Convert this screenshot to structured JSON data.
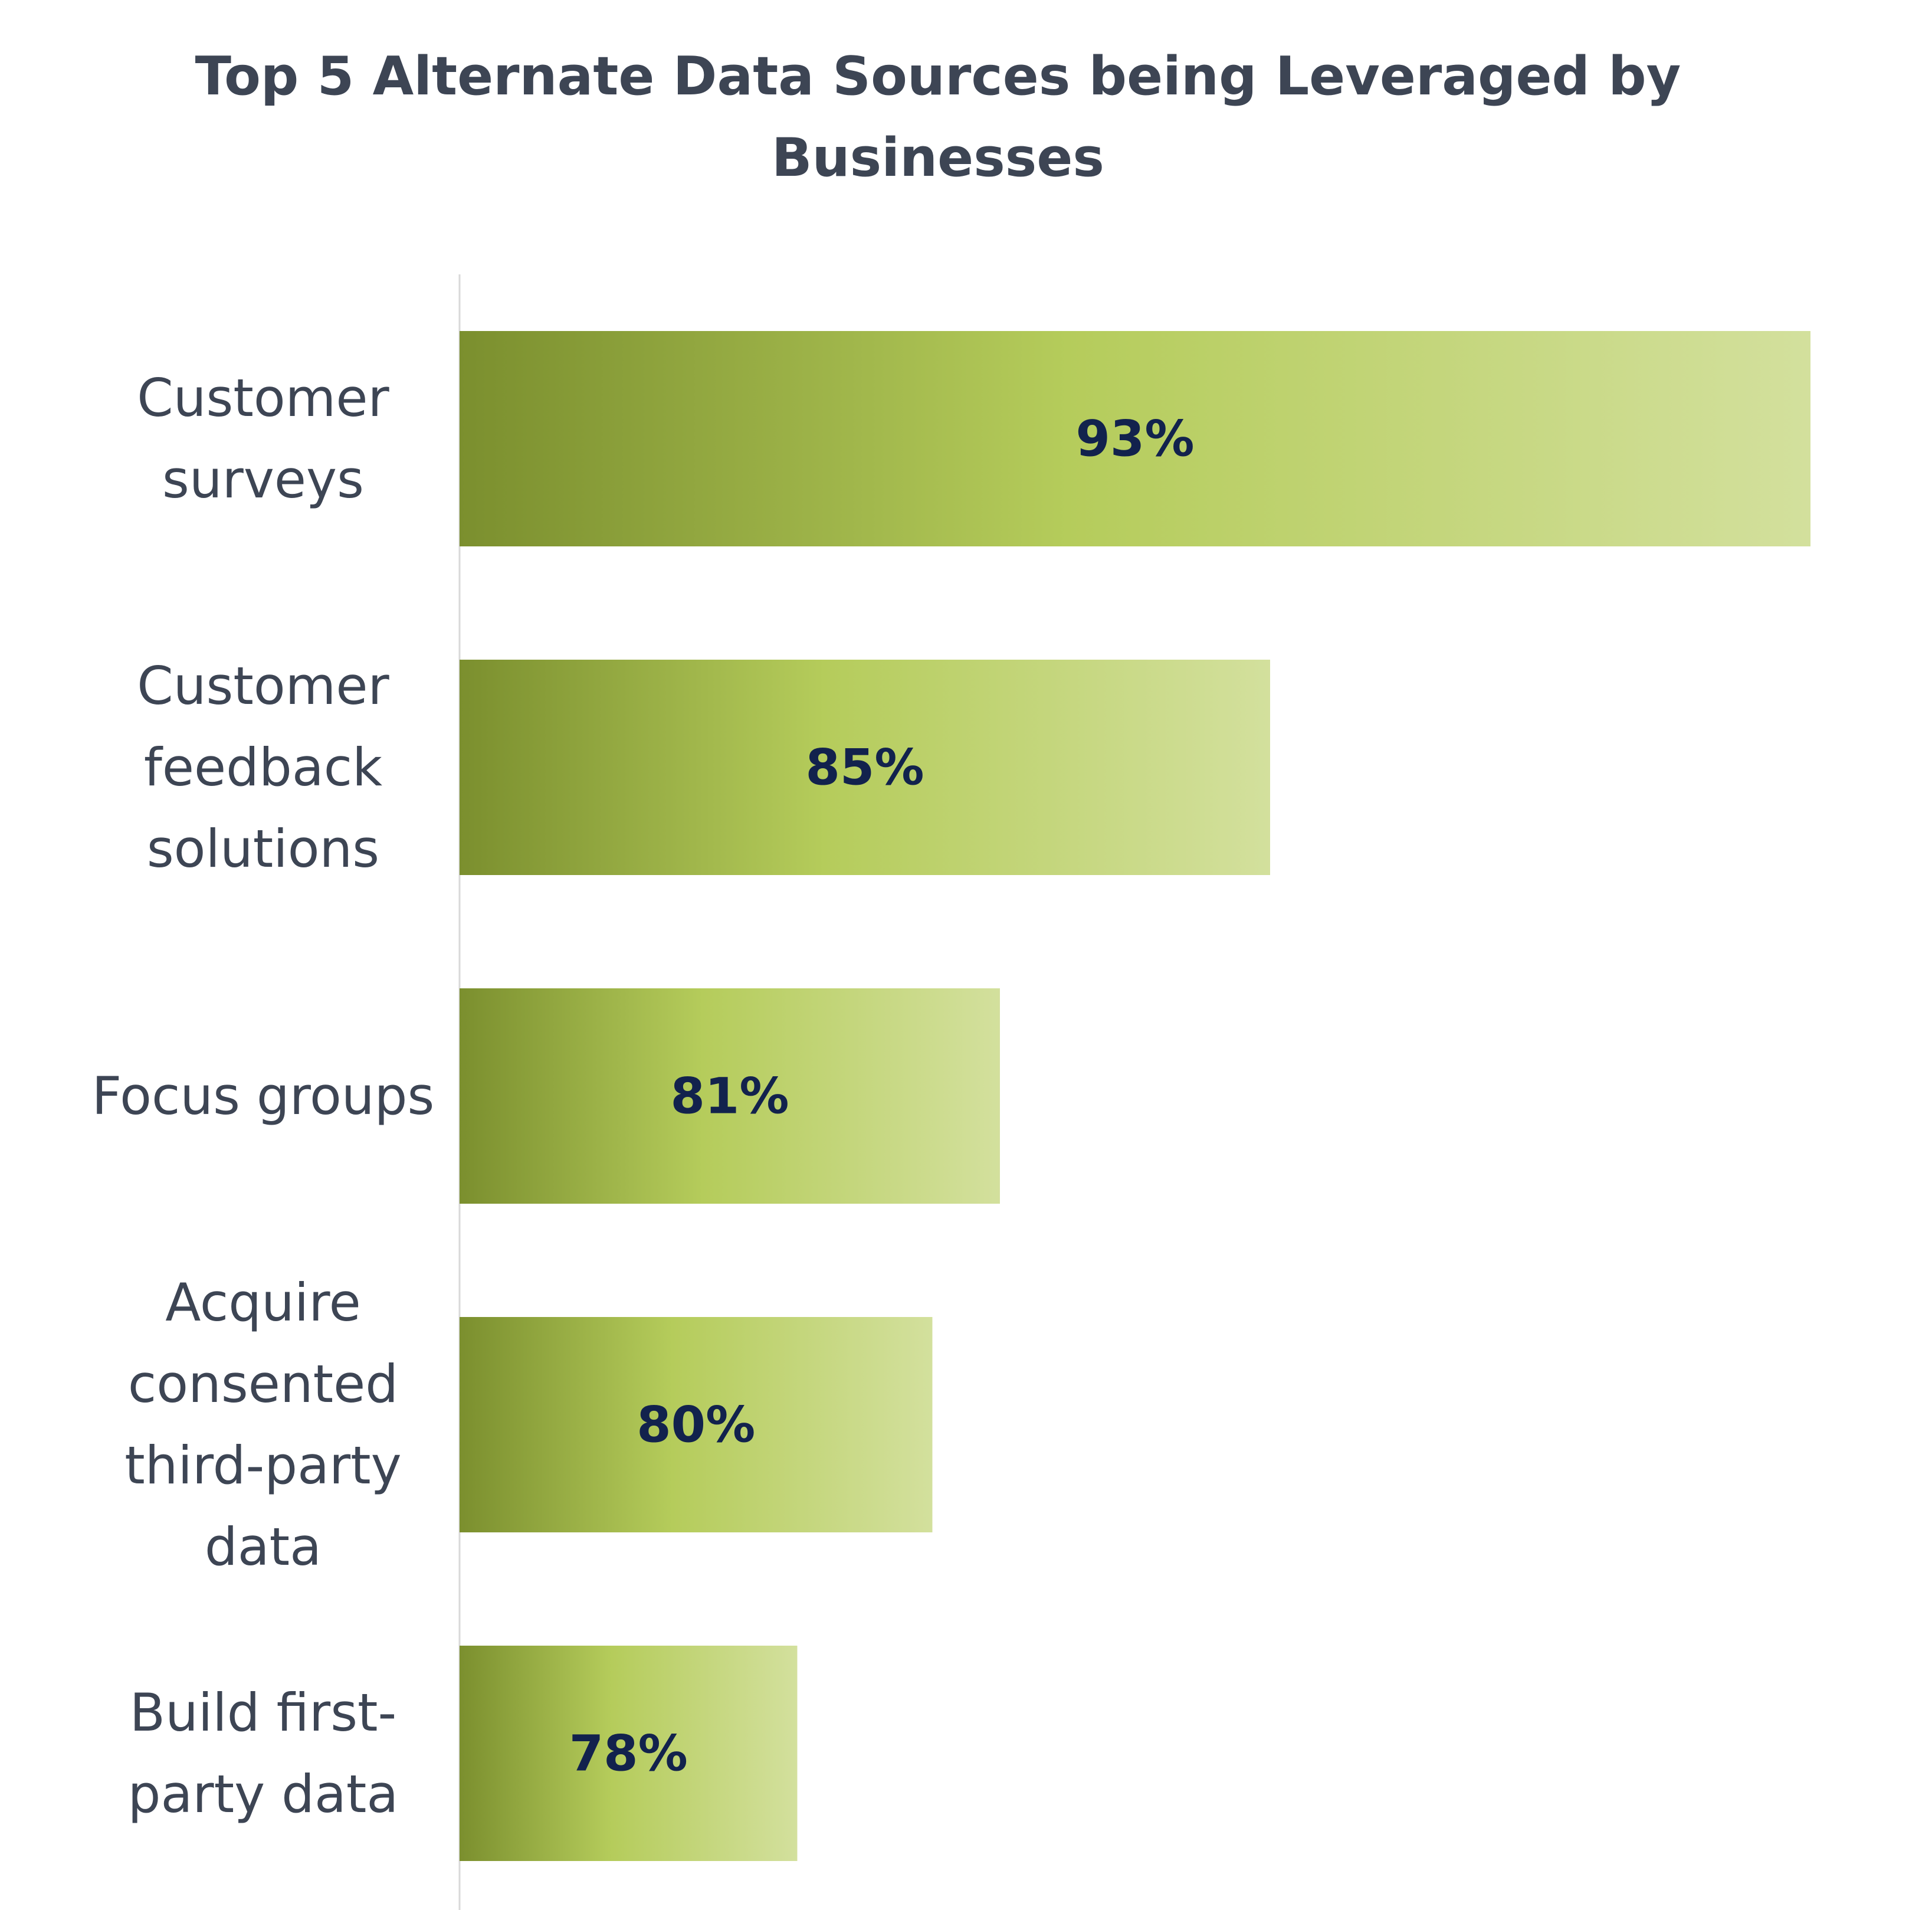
{
  "chart_data": {
    "type": "bar",
    "orientation": "horizontal",
    "title": "Top 5 Alternate Data Sources being Leveraged by Businesses",
    "title_lines": [
      "Top 5 Alternate Data Sources being Leveraged by",
      "Businesses"
    ],
    "categories": [
      "Customer surveys",
      "Customer feedback solutions",
      "Focus groups",
      "Acquire consented third-party data",
      "Build first-party data"
    ],
    "category_lines": [
      [
        "Customer",
        "surveys"
      ],
      [
        "Customer",
        "feedback",
        "solutions"
      ],
      [
        "Focus groups"
      ],
      [
        "Acquire",
        "consented",
        "third-party",
        "data"
      ],
      [
        "Build first-",
        "party data"
      ]
    ],
    "values": [
      93,
      85,
      81,
      80,
      78
    ],
    "value_labels": [
      "93%",
      "85%",
      "81%",
      "80%",
      "78%"
    ],
    "unit": "%",
    "xlabel": "",
    "ylabel": "",
    "grid": false,
    "legend": "none",
    "colors": {
      "bar_gradient_start": "#7b8f2e",
      "bar_gradient_mid": "#b5cc5b",
      "bar_gradient_end": "#d3e09d",
      "value_text": "#12224d",
      "label_text": "#3d4554",
      "axis_line": "#d9d9d9"
    }
  }
}
